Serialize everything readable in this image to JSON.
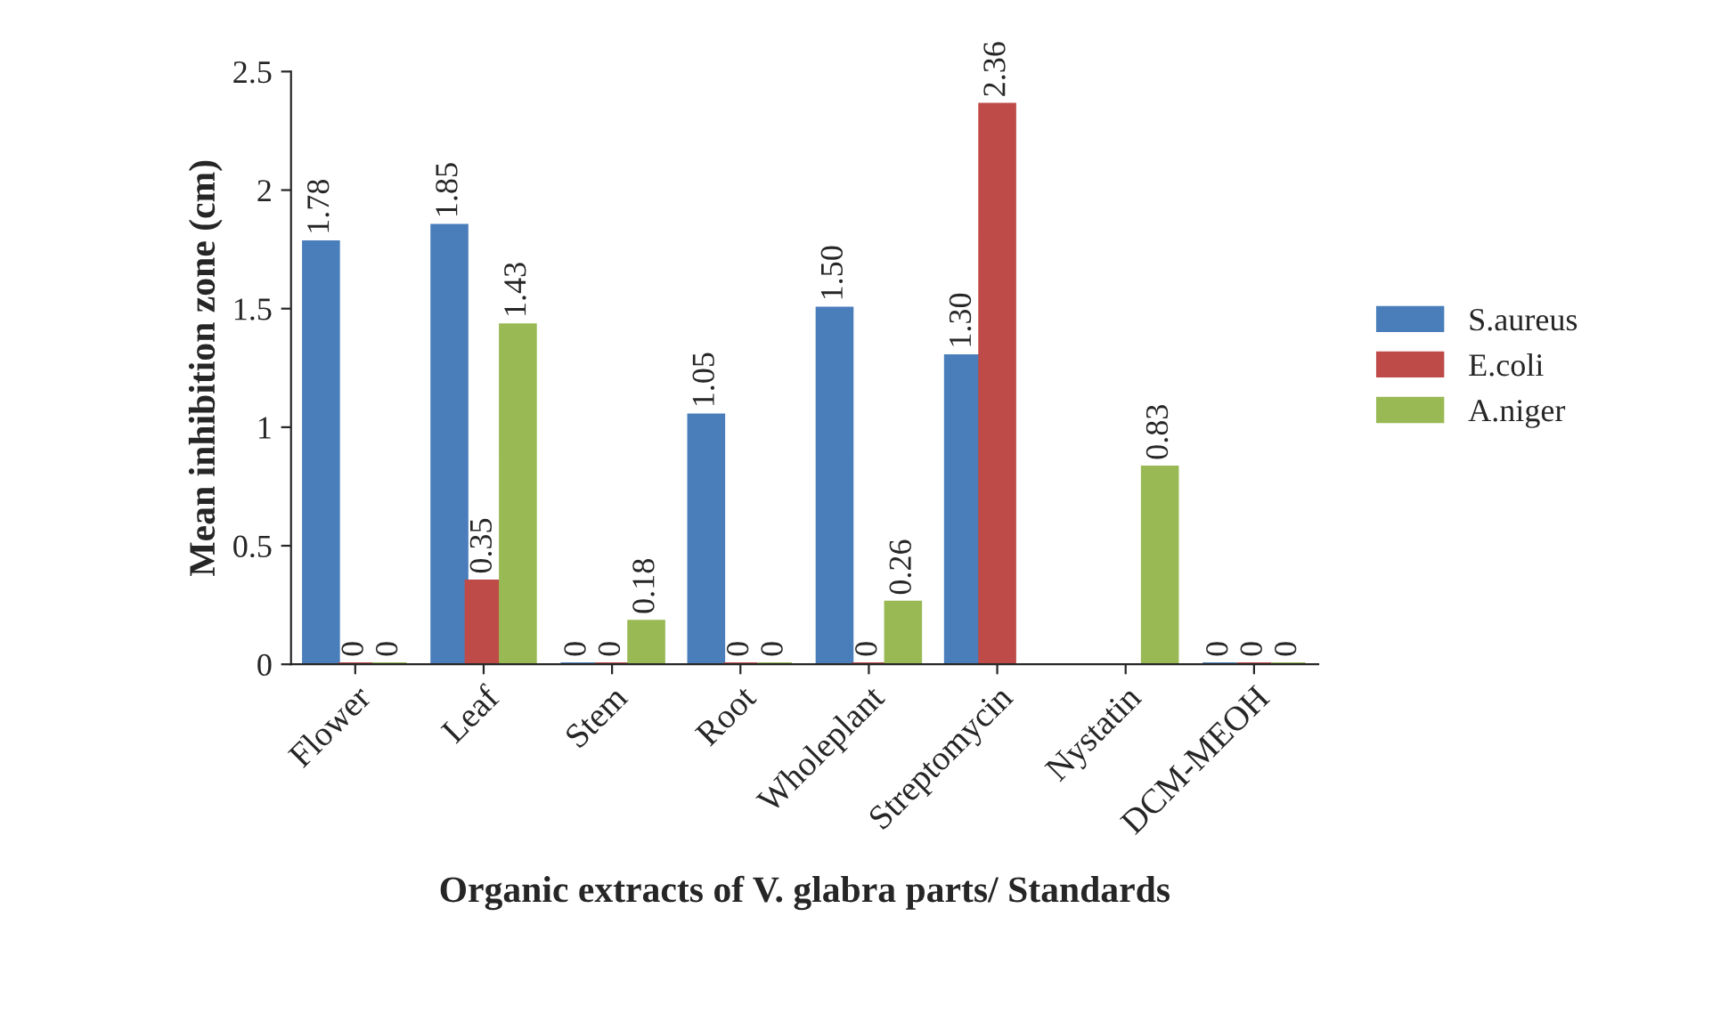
{
  "chart_data": {
    "type": "bar",
    "xlabel": "Organic extracts of V. glabra parts/ Standards",
    "ylabel": "Mean inhibition zone (cm)",
    "categories": [
      "Flower",
      "Leaf",
      "Stem",
      "Root",
      "Wholeplant",
      "Streptomycin",
      "Nystatin",
      "DCM-MEOH"
    ],
    "series": [
      {
        "name": "S.aureus",
        "color": "#4a7ebb",
        "values": [
          1.78,
          1.85,
          0,
          1.05,
          1.5,
          1.3,
          null,
          0
        ],
        "value_labels": [
          "1.78",
          "1.85",
          "0",
          "1.05",
          "1.50",
          "1.30",
          null,
          "0"
        ]
      },
      {
        "name": "E.coli",
        "color": "#be4b48",
        "values": [
          0,
          0.35,
          0,
          0,
          0,
          2.36,
          null,
          0
        ],
        "value_labels": [
          "0",
          "0.35",
          "0",
          "0",
          "0",
          "2.36",
          null,
          "0"
        ]
      },
      {
        "name": "A.niger",
        "color": "#98b954",
        "values": [
          0,
          1.43,
          0.18,
          0,
          0.26,
          null,
          0.83,
          0
        ],
        "value_labels": [
          "0",
          "1.43",
          "0.18",
          "0",
          "0.26",
          null,
          "0.83",
          "0"
        ]
      }
    ],
    "ylim": [
      0,
      2.5
    ],
    "yticks": [
      0,
      0.5,
      1,
      1.5,
      2,
      2.5
    ],
    "grid": false,
    "legend": "right"
  }
}
